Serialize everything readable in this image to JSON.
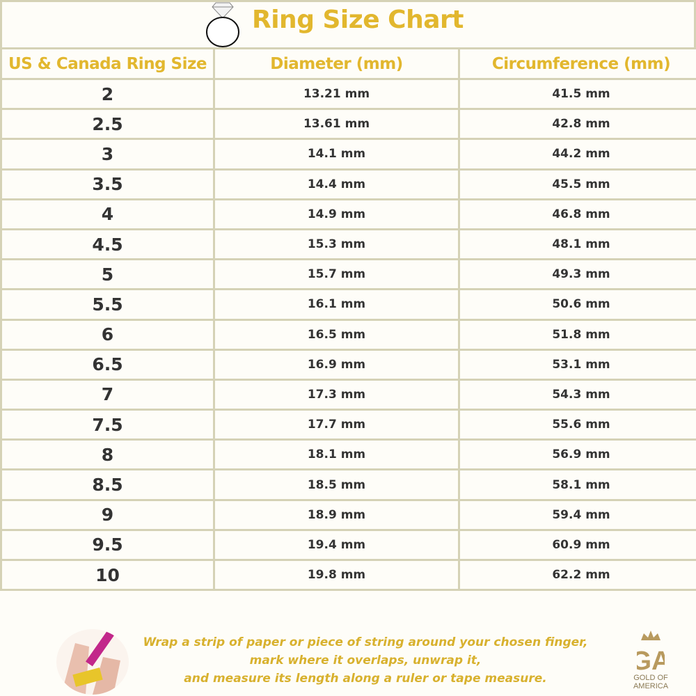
{
  "title": "Ring Size Chart",
  "columns": [
    "US & Canada Ring Size",
    "Diameter (mm)",
    "Circumference (mm)"
  ],
  "rows": [
    [
      "2",
      "13.21 mm",
      "41.5 mm"
    ],
    [
      "2.5",
      "13.61 mm",
      "42.8 mm"
    ],
    [
      "3",
      "14.1 mm",
      "44.2 mm"
    ],
    [
      "3.5",
      "14.4 mm",
      "45.5 mm"
    ],
    [
      "4",
      "14.9 mm",
      "46.8 mm"
    ],
    [
      "4.5",
      "15.3 mm",
      "48.1 mm"
    ],
    [
      "5",
      "15.7 mm",
      "49.3 mm"
    ],
    [
      "5.5",
      "16.1 mm",
      "50.6 mm"
    ],
    [
      "6",
      "16.5 mm",
      "51.8 mm"
    ],
    [
      "6.5",
      "16.9 mm",
      "53.1 mm"
    ],
    [
      "7",
      "17.3 mm",
      "54.3 mm"
    ],
    [
      "7.5",
      "17.7 mm",
      "55.6 mm"
    ],
    [
      "8",
      "18.1 mm",
      "56.9 mm"
    ],
    [
      "8.5",
      "18.5 mm",
      "58.1 mm"
    ],
    [
      "9",
      "18.9 mm",
      "59.4 mm"
    ],
    [
      "9.5",
      "19.4 mm",
      "60.9 mm"
    ],
    [
      "10",
      "19.8 mm",
      "62.2 mm"
    ]
  ],
  "instructions": [
    "Wrap a strip of paper or piece of string around your chosen finger,",
    "mark where it overlaps, unwrap it,",
    "and measure its length along a ruler or tape measure."
  ],
  "logo": {
    "monogram": "GA",
    "line1": "GOLD OF",
    "line2": "AMERICA"
  },
  "colors": {
    "accent": "#e2b72e",
    "border": "#d5d2b6",
    "text": "#333333"
  }
}
